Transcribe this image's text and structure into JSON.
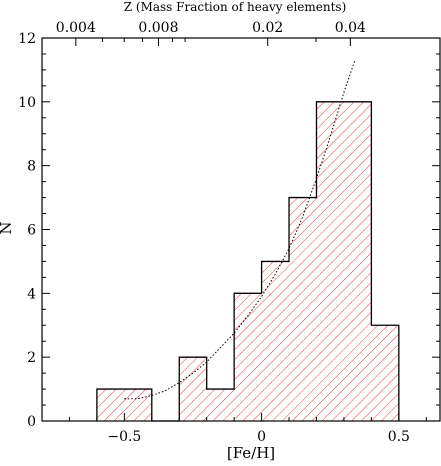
{
  "chart_data": {
    "type": "bar",
    "subtype": "step-histogram",
    "title": "",
    "xlabel": "[Fe/H]",
    "ylabel": "N",
    "top_axis_label": "Z (Mass Fraction of heavy elements)",
    "xlim": [
      -0.8,
      0.65
    ],
    "ylim": [
      0,
      12
    ],
    "x_ticks": [
      -0.5,
      0,
      0.5
    ],
    "x_tick_labels": [
      "−0.5",
      "0",
      "0.5"
    ],
    "y_ticks": [
      0,
      2,
      4,
      6,
      8,
      10,
      12
    ],
    "y_tick_labels": [
      "0",
      "2",
      "4",
      "6",
      "8",
      "10",
      "12"
    ],
    "top_ticks": [
      0.004,
      0.008,
      0.02,
      0.04
    ],
    "top_tick_labels": [
      "0.004",
      "0.008",
      "0.02",
      "0.04"
    ],
    "grid": false,
    "bins": [
      {
        "x0": -0.6,
        "x1": -0.4,
        "count": 1
      },
      {
        "x0": -0.4,
        "x1": -0.3,
        "count": 0
      },
      {
        "x0": -0.3,
        "x1": -0.2,
        "count": 2
      },
      {
        "x0": -0.2,
        "x1": -0.1,
        "count": 1
      },
      {
        "x0": -0.1,
        "x1": 0.0,
        "count": 4
      },
      {
        "x0": 0.0,
        "x1": 0.1,
        "count": 5
      },
      {
        "x0": 0.1,
        "x1": 0.2,
        "count": 7
      },
      {
        "x0": 0.2,
        "x1": 0.4,
        "count": 10
      },
      {
        "x0": 0.4,
        "x1": 0.5,
        "count": 3
      }
    ],
    "curve": {
      "style": "dotted",
      "points": [
        [
          -0.5,
          0.7
        ],
        [
          -0.45,
          0.7
        ],
        [
          -0.4,
          0.8
        ],
        [
          -0.35,
          0.95
        ],
        [
          -0.3,
          1.2
        ],
        [
          -0.25,
          1.5
        ],
        [
          -0.2,
          1.85
        ],
        [
          -0.15,
          2.3
        ],
        [
          -0.1,
          2.75
        ],
        [
          -0.05,
          3.3
        ],
        [
          0.0,
          3.9
        ],
        [
          0.05,
          4.6
        ],
        [
          0.1,
          5.4
        ],
        [
          0.15,
          6.4
        ],
        [
          0.2,
          7.6
        ],
        [
          0.25,
          8.9
        ],
        [
          0.3,
          10.3
        ],
        [
          0.34,
          11.3
        ]
      ]
    },
    "colors": {
      "hatch": "#e83a3a",
      "outline": "#000000",
      "curve": "#000000"
    }
  }
}
